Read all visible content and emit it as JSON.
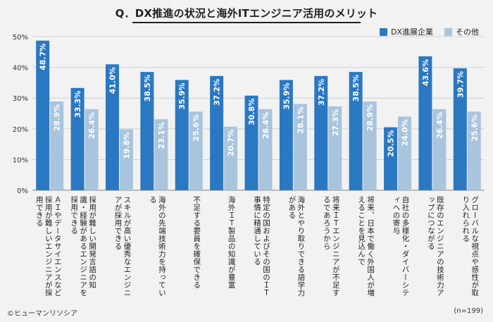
{
  "title": "Q．DX推進の状況と海外ITエンジニア活用のメリット",
  "legend": {
    "dx_label": "DX進展企業",
    "other_label": "その他"
  },
  "colors": {
    "dx": "#2b78c2",
    "other": "#a9c4dd",
    "grid": "#c8c8c8",
    "axis": "#999999"
  },
  "footer": {
    "copyright": "©ヒューマンリソシア",
    "sample": "(n=199)"
  },
  "chart_data": {
    "type": "bar",
    "title": "Q．DX推進の状況と海外ITエンジニア活用のメリット",
    "ylim": [
      0,
      50
    ],
    "yticks": [
      "0%",
      "10%",
      "20%",
      "30%",
      "40%",
      "50%"
    ],
    "ytick_values": [
      0,
      10,
      20,
      30,
      40,
      50
    ],
    "grid": true,
    "legend_position": "top-right",
    "categories": [
      "ＡＩやデータサイエンスなど採用が難しいエンジニアが採用できる",
      "採用が難しい開発言語の知識・経験があるエンジニアを採用できる",
      "スキルが高い優秀なエンジニアが採用できる",
      "海外の先端技術力を持っている",
      "不足する要員を確保できる",
      "海外ＩＴ製品の知識が豊富",
      "特定の国およびその国のＩＴ事情に精通している",
      "海外とやり取りできる語学力がある",
      "将来ＩＴエンジニアが不足するであろうから",
      "将来、日本で働く外国人が増えることを見込んで",
      "自社の多様化・ダイバーシティへの寄与",
      "既存のエンジニアの技術力アップにつながる",
      "グローバルな視点や感性が取り入れられる"
    ],
    "series": [
      {
        "name": "DX進展企業",
        "values": [
          48.7,
          33.3,
          41.0,
          38.5,
          35.9,
          37.2,
          30.8,
          35.9,
          37.2,
          38.5,
          20.5,
          43.6,
          39.7
        ],
        "labels": [
          "48.7%",
          "33.3%",
          "41.0%",
          "38.5%",
          "35.9%",
          "37.2%",
          "30.8%",
          "35.9%",
          "37.2%",
          "38.5%",
          "20.5%",
          "43.6%",
          "39.7%"
        ]
      },
      {
        "name": "その他",
        "values": [
          28.9,
          26.4,
          19.8,
          23.1,
          25.6,
          20.7,
          26.4,
          28.1,
          27.3,
          28.9,
          24.0,
          26.4,
          25.6
        ],
        "labels": [
          "28.9%",
          "26.4%",
          "19.8%",
          "23.1%",
          "25.6%",
          "20.7%",
          "26.4%",
          "28.1%",
          "27.3%",
          "28.9%",
          "24.0%",
          "26.4%",
          "25.6%"
        ]
      }
    ]
  }
}
